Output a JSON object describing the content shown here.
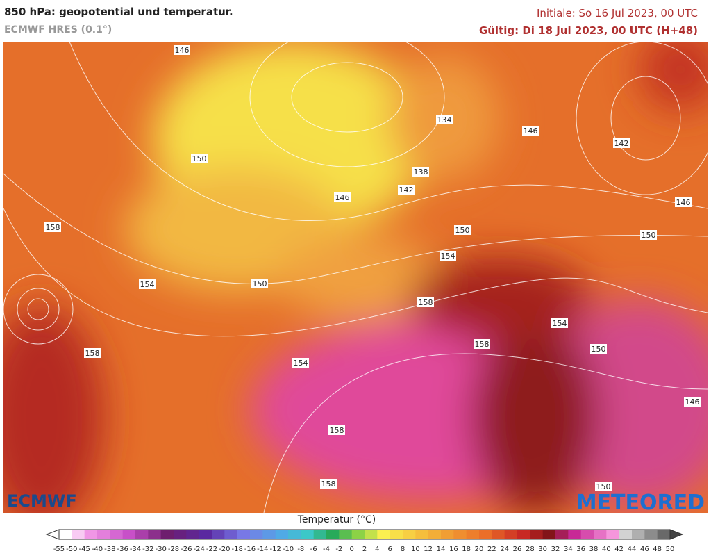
{
  "header": {
    "title": "850 hPa: geopotential und temperatur.",
    "model": "ECMWF HRES (0.1°)",
    "init": "Initiale: So 16 Jul 2023, 00 UTC",
    "valid": "Gültig: Di 18 Jul 2023, 00 UTC (H+48)"
  },
  "map": {
    "contour_labels": [
      146,
      150,
      158,
      154,
      158,
      150,
      146,
      134,
      138,
      142,
      150,
      154,
      158,
      154,
      158,
      158,
      158,
      154,
      150,
      146,
      150,
      146,
      142,
      146,
      150
    ]
  },
  "logos": {
    "left": "ECMWF",
    "right": "METEORED"
  },
  "legend": {
    "title": "Temperatur (°C)",
    "ticks": [
      -55,
      -50,
      -45,
      -40,
      -38,
      -36,
      -34,
      -32,
      -30,
      -28,
      -26,
      -24,
      -22,
      -20,
      -18,
      -16,
      -14,
      -12,
      -10,
      -8,
      -6,
      -4,
      -2,
      0,
      2,
      4,
      6,
      8,
      10,
      12,
      14,
      16,
      18,
      20,
      22,
      24,
      26,
      28,
      30,
      32,
      34,
      36,
      38,
      40,
      42,
      44,
      46,
      48,
      50
    ]
  }
}
